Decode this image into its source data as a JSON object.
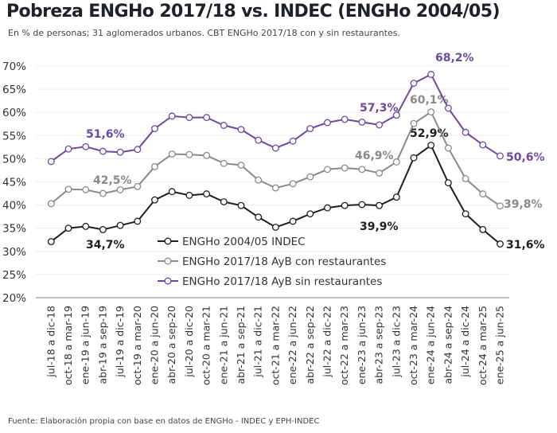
{
  "title": "Pobreza ENGHo 2017/18 vs. INDEC (ENGHo 2004/05)",
  "subtitle": "En % de personas; 31 aglomerados urbanos. CBT ENGHo 2017/18 con y sin restaurantes.",
  "footer": "Fuente: Elaboración propia con base en datos de ENGHo - INDEC y EPH-INDEC",
  "chart_data": {
    "type": "line",
    "title": "Pobreza ENGHo 2017/18 vs. INDEC (ENGHo 2004/05)",
    "xlabel": "",
    "ylabel": "",
    "ylim": [
      20,
      70
    ],
    "yticks": [
      "20%",
      "25%",
      "30%",
      "35%",
      "40%",
      "45%",
      "50%",
      "55%",
      "60%",
      "65%",
      "70%"
    ],
    "grid": true,
    "legend_placement": "center-bottom inside plot",
    "categories": [
      "jul-18 a dic-18",
      "oct-18 a mar-19",
      "ene-19 a jun-19",
      "abr-19 a sep-19",
      "jul-19 a dic-19",
      "oct-19 a mar-20",
      "ene-20 a jun-20",
      "abr-20 a sep-20",
      "jul-20 a dic-20",
      "oct-20 a mar-21",
      "ene-21 a jun-21",
      "abr-21 a sep-21",
      "jul-21 a dic-21",
      "oct-21 a mar-22",
      "ene-22 a jun-22",
      "abr-22 a sep-22",
      "jul-22 a dic-22",
      "oct-22 a mar-23",
      "ene-23 a jun-23",
      "abr-23 a sep-23",
      "jul-23 a dic-23",
      "oct-23 a mar-24",
      "ene-24 a jun-24",
      "abr-24 a sep-24",
      "jul-24 a dic-24",
      "oct-24 a mar-25",
      "ene-25 a jun-25"
    ],
    "series": [
      {
        "name": "ENGHo 2004/05 INDEC",
        "color": "#1f1f1f",
        "values": [
          32.1,
          35.0,
          35.4,
          34.7,
          35.6,
          36.5,
          41.1,
          42.9,
          42.1,
          42.4,
          40.7,
          39.9,
          37.4,
          35.2,
          36.5,
          38.1,
          39.4,
          39.9,
          40.1,
          39.9,
          41.7,
          50.2,
          52.9,
          44.8,
          38.1,
          34.7,
          31.6
        ],
        "labels": [
          {
            "index": 3,
            "text": "34,7%"
          },
          {
            "index": 19,
            "text": "39,9%"
          },
          {
            "index": 22,
            "text": "52,9%"
          },
          {
            "index": 26,
            "text": "31,6%"
          }
        ]
      },
      {
        "name": "ENGHo 2017/18 AyB con restaurantes",
        "color": "#8a8a8a",
        "values": [
          40.3,
          43.4,
          43.3,
          42.5,
          43.3,
          44.0,
          48.3,
          51.0,
          50.9,
          50.7,
          49.0,
          48.6,
          45.4,
          43.7,
          44.6,
          46.1,
          47.7,
          48.0,
          47.7,
          46.9,
          49.3,
          57.6,
          60.1,
          52.3,
          45.7,
          42.4,
          39.8
        ],
        "labels": [
          {
            "index": 3,
            "text": "42,5%"
          },
          {
            "index": 19,
            "text": "46,9%"
          },
          {
            "index": 22,
            "text": "60,1%"
          },
          {
            "index": 26,
            "text": "39,8%"
          }
        ]
      },
      {
        "name": "ENGHo 2017/18 AyB sin restaurantes",
        "color": "#6c4a9e",
        "values": [
          49.4,
          52.1,
          52.6,
          51.6,
          51.4,
          52.0,
          56.5,
          59.2,
          58.9,
          58.9,
          57.2,
          56.3,
          54.0,
          52.3,
          53.8,
          56.5,
          57.8,
          58.5,
          57.9,
          57.3,
          59.4,
          66.3,
          68.2,
          60.9,
          55.7,
          53.0,
          50.6
        ],
        "labels": [
          {
            "index": 3,
            "text": "51,6%"
          },
          {
            "index": 19,
            "text": "57,3%"
          },
          {
            "index": 22,
            "text": "68,2%"
          },
          {
            "index": 26,
            "text": "50,6%"
          }
        ]
      }
    ]
  }
}
